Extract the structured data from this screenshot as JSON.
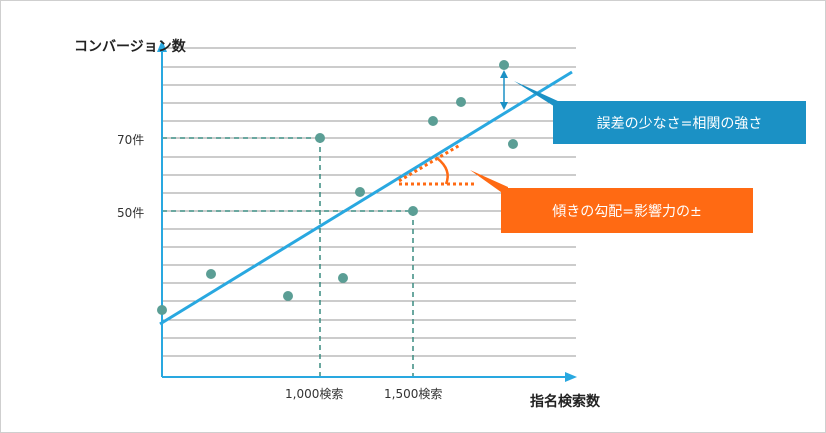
{
  "y_axis_title": "コンバージョン数",
  "x_axis_title": "指名検索数",
  "y_ticks": [
    {
      "label": "70件"
    },
    {
      "label": "50件"
    }
  ],
  "x_ticks": [
    {
      "label": "1,000検索"
    },
    {
      "label": "1,500検索"
    }
  ],
  "callouts": {
    "correlation": "誤差の少なさ=相関の強さ",
    "slope": "傾きの勾配=影響力の±"
  },
  "colors": {
    "axis": "#29a8e0",
    "regression": "#29a8e0",
    "points": "#5b9e95",
    "guides": "#3a8c80",
    "grid": "#999999",
    "callout_blue": "#1b91c5",
    "callout_orange": "#ff6a13"
  }
}
